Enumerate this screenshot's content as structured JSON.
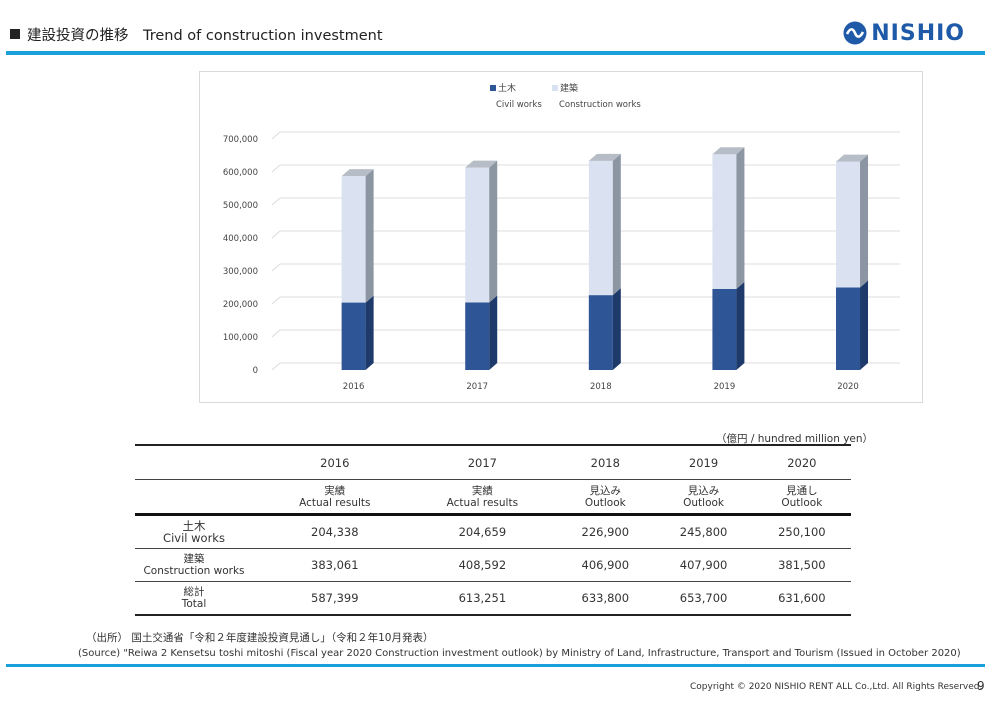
{
  "header": {
    "title": "建設投資の推移　Trend of construction investment",
    "logo_text": "NISHIO"
  },
  "colors": {
    "accent": "#1aa0dc",
    "civil": "#2e5596",
    "civil_dark": "#1e3a6b",
    "construction": "#dae2f1",
    "construction_side": "#8c96a3",
    "logo": "#1e5aa8"
  },
  "chart_data": {
    "type": "bar",
    "stacked": true,
    "categories": [
      "2016",
      "2017",
      "2018",
      "2019",
      "2020"
    ],
    "series": [
      {
        "name": "土木 Civil works",
        "name_jp": "土木",
        "name_en": "Civil works",
        "values": [
          204338,
          204659,
          226900,
          245800,
          250100
        ]
      },
      {
        "name": "建築 Construction works",
        "name_jp": "建築",
        "name_en": "Construction works",
        "values": [
          383061,
          408592,
          406900,
          407900,
          381500
        ]
      }
    ],
    "ylim": [
      0,
      700000
    ],
    "yticks": [
      "0",
      "100,000",
      "200,000",
      "300,000",
      "400,000",
      "500,000",
      "600,000",
      "700,000"
    ],
    "grid": true,
    "legend_position": "top-center"
  },
  "table": {
    "unit": "（億円 / hundred million yen）",
    "years": [
      "2016",
      "2017",
      "2018",
      "2019",
      "2020"
    ],
    "status_jp": [
      "実績",
      "実績",
      "見込み",
      "見込み",
      "見通し"
    ],
    "status_en": [
      "Actual results",
      "Actual results",
      "Outlook",
      "Outlook",
      "Outlook"
    ],
    "rows": [
      {
        "label_jp": "土木",
        "label_en": "Civil works",
        "values": [
          "204,338",
          "204,659",
          "226,900",
          "245,800",
          "250,100"
        ]
      },
      {
        "label_jp": "建築",
        "label_en": "Construction works",
        "values": [
          "383,061",
          "408,592",
          "406,900",
          "407,900",
          "381,500"
        ]
      },
      {
        "label_jp": "総計",
        "label_en": "Total",
        "values": [
          "587,399",
          "613,251",
          "633,800",
          "653,700",
          "631,600"
        ]
      }
    ]
  },
  "footer": {
    "source_jp": "（出所） 国土交通省「令和２年度建設投資見通し」（令和２年10月発表）",
    "source_en": "(Source) \"Reiwa 2 Kensetsu toshi mitoshi (Fiscal year 2020 Construction investment outlook) by Ministry of Land, Infrastructure, Transport and Tourism (Issued in October 2020)",
    "copyright": "Copyright © 2020 NISHIO RENT ALL Co.,Ltd. All Rights Reserved.",
    "page": "9"
  }
}
